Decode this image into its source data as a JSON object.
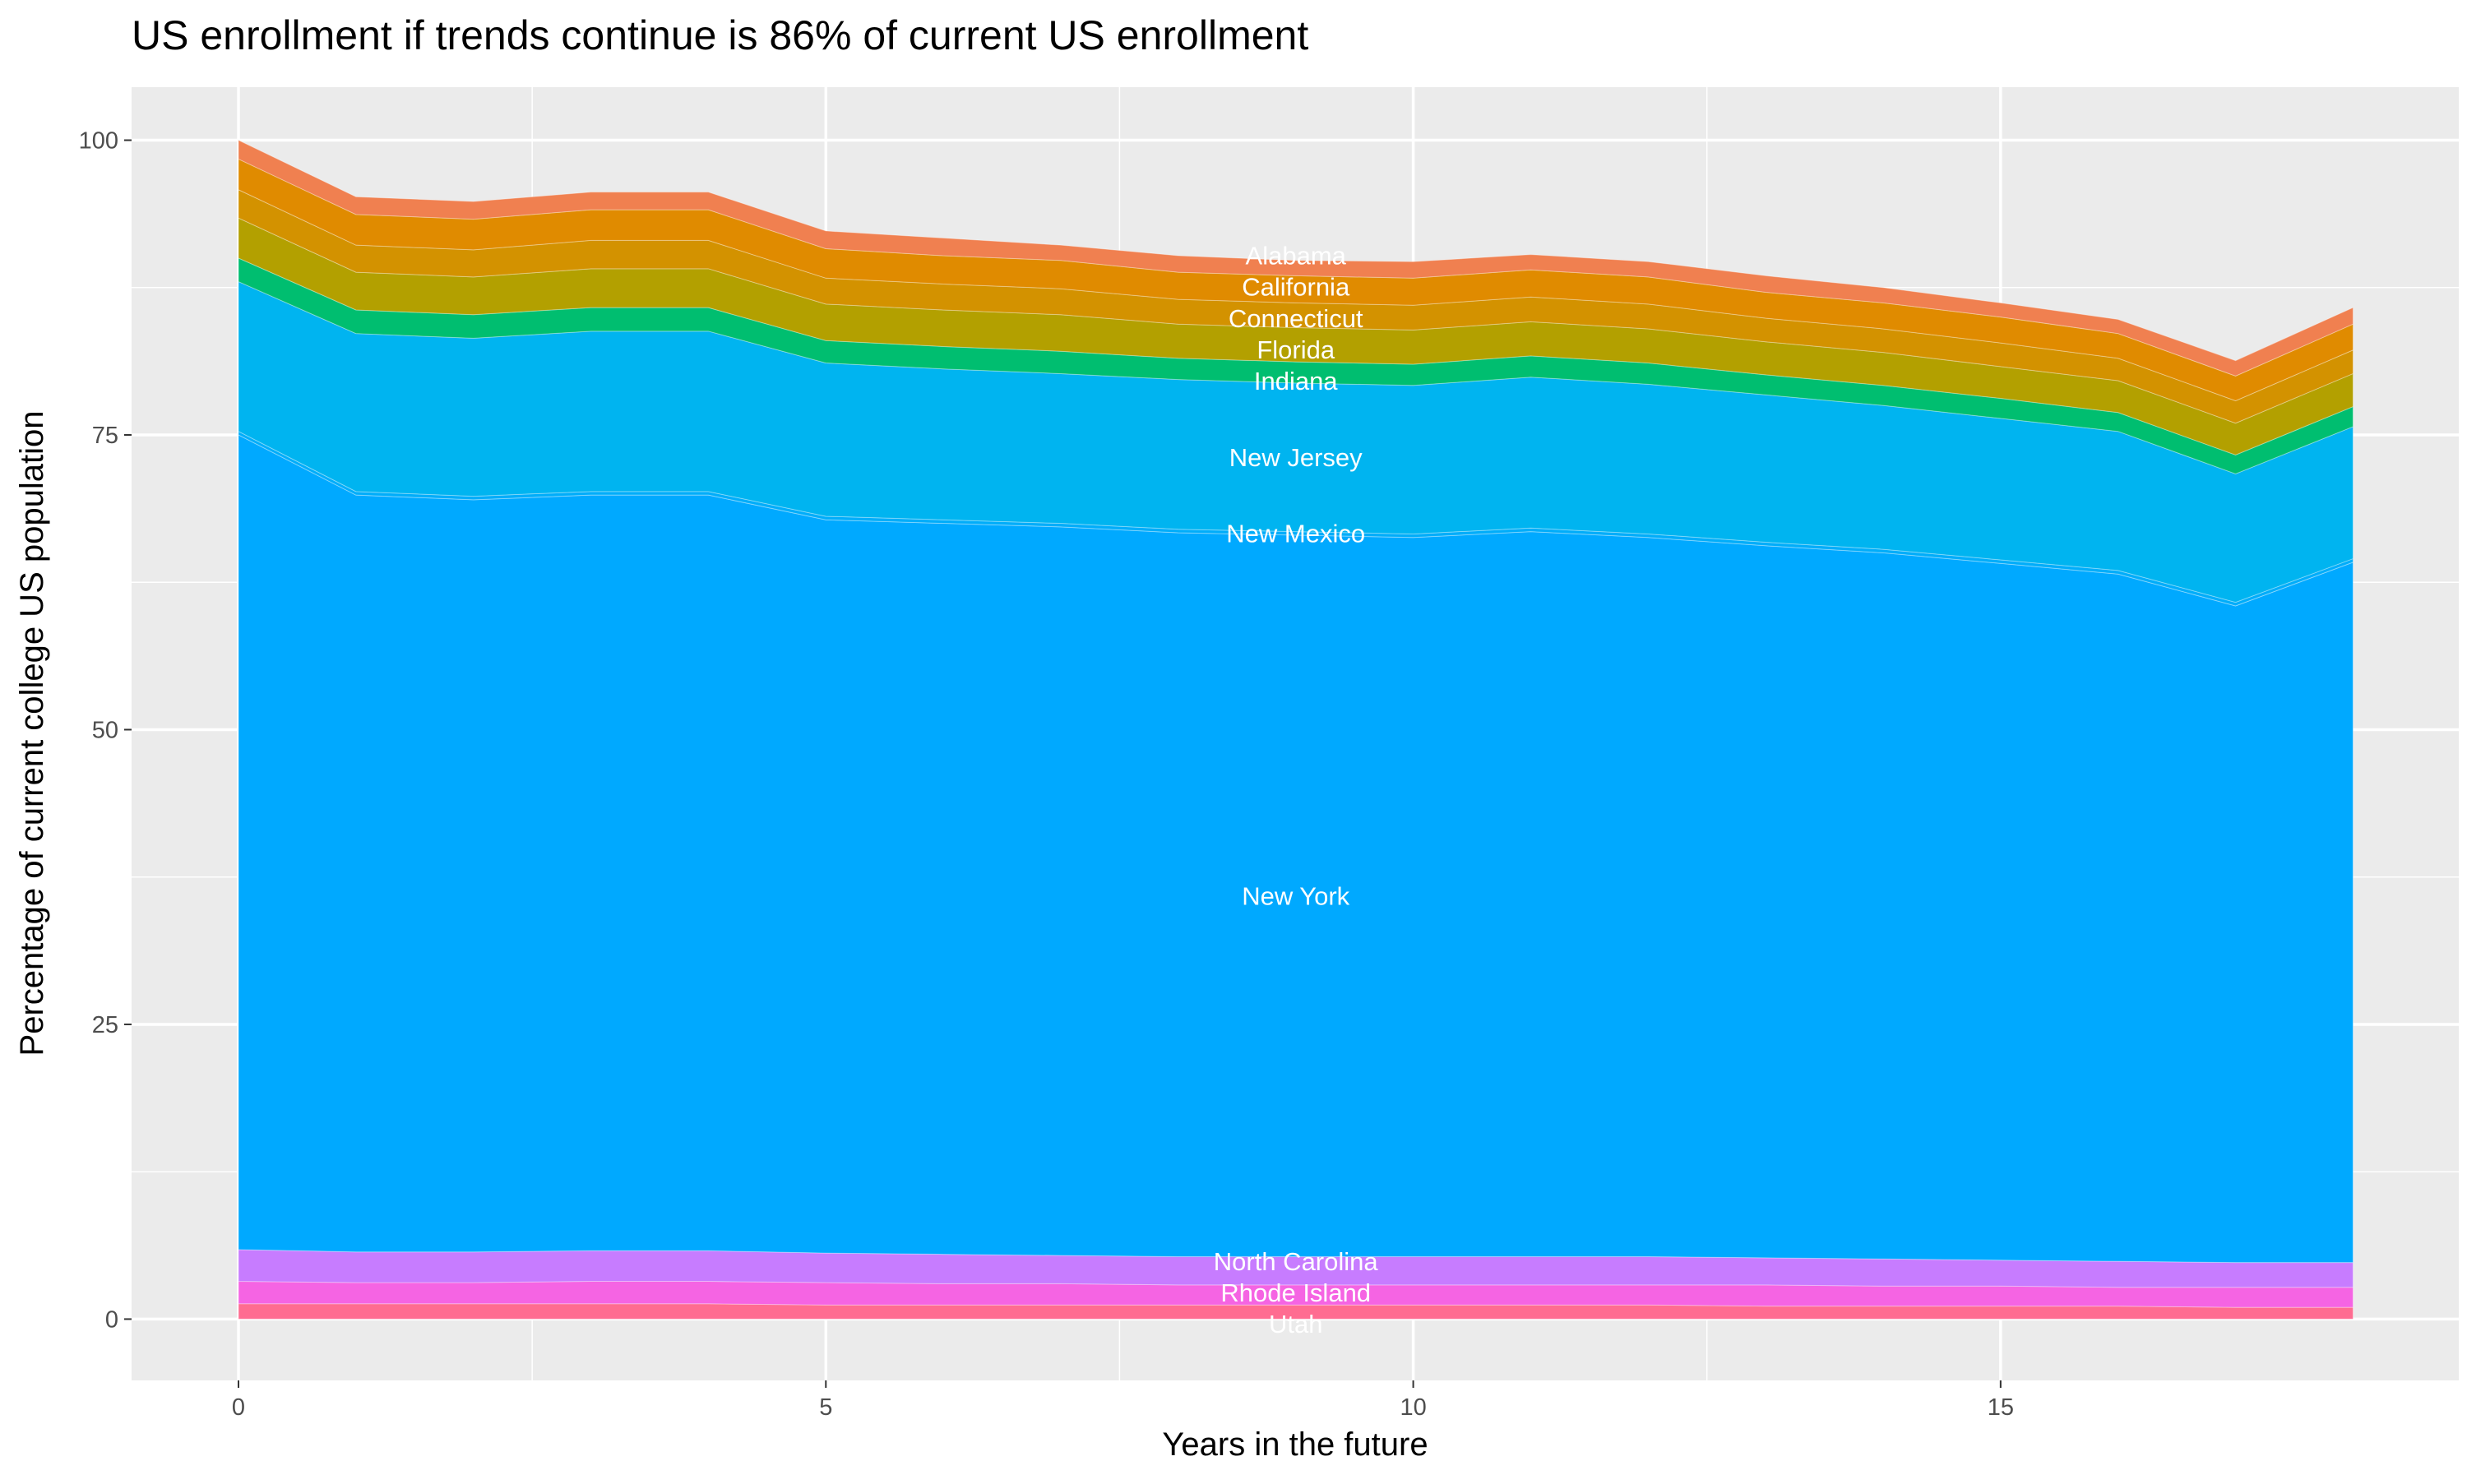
{
  "chart_data": {
    "type": "area",
    "stacked": true,
    "title": "US enrollment if trends continue is 86% of current US enrollment",
    "xlabel": "Years in the future",
    "ylabel": "Percentage of current college US population",
    "xlim": [
      -0.91,
      18.9
    ],
    "ylim": [
      -5.2,
      104.5
    ],
    "x_ticks": [
      0,
      5,
      10,
      15
    ],
    "y_ticks": [
      0,
      25,
      50,
      75,
      100
    ],
    "grid": true,
    "legend": "none",
    "label_x": 9,
    "x": [
      0,
      1,
      2,
      3,
      4,
      5,
      6,
      7,
      8,
      9,
      10,
      11,
      12,
      13,
      14,
      15,
      16,
      17,
      18
    ],
    "series": [
      {
        "name": "Utah",
        "color": "#FF6C91",
        "values": [
          1.3,
          1.3,
          1.3,
          1.3,
          1.3,
          1.2,
          1.2,
          1.2,
          1.2,
          1.2,
          1.2,
          1.2,
          1.2,
          1.1,
          1.1,
          1.1,
          1.1,
          1.0,
          1.0
        ]
      },
      {
        "name": "Rhode Island",
        "color": "#F564E3",
        "values": [
          1.9,
          1.8,
          1.8,
          1.9,
          1.9,
          1.9,
          1.8,
          1.8,
          1.7,
          1.7,
          1.7,
          1.7,
          1.7,
          1.8,
          1.7,
          1.7,
          1.6,
          1.7,
          1.7
        ]
      },
      {
        "name": "North Carolina",
        "color": "#C77CFF",
        "values": [
          2.7,
          2.6,
          2.6,
          2.6,
          2.6,
          2.5,
          2.5,
          2.4,
          2.4,
          2.4,
          2.4,
          2.4,
          2.4,
          2.3,
          2.3,
          2.2,
          2.2,
          2.1,
          2.1
        ]
      },
      {
        "name": "New York",
        "color": "#00A9FF",
        "values": [
          69.1,
          64.2,
          63.8,
          64.1,
          64.1,
          62.2,
          62.0,
          61.8,
          61.4,
          61.2,
          61.0,
          61.5,
          61.0,
          60.4,
          59.9,
          59.1,
          58.3,
          55.7,
          59.4
        ]
      },
      {
        "name": "New Mexico",
        "color": "#00ADFA",
        "values": [
          0.3,
          0.3,
          0.3,
          0.3,
          0.3,
          0.3,
          0.3,
          0.3,
          0.3,
          0.3,
          0.3,
          0.3,
          0.3,
          0.3,
          0.3,
          0.3,
          0.3,
          0.3,
          0.3
        ]
      },
      {
        "name": "New Jersey",
        "color": "#00B4F0",
        "values": [
          12.7,
          13.4,
          13.4,
          13.6,
          13.6,
          13.0,
          12.8,
          12.7,
          12.7,
          12.6,
          12.6,
          12.8,
          12.7,
          12.5,
          12.2,
          12.0,
          11.8,
          10.9,
          11.2
        ]
      },
      {
        "name": "Indiana",
        "color": "#00BE70",
        "values": [
          2.0,
          2.0,
          2.0,
          2.0,
          2.0,
          1.9,
          1.9,
          1.9,
          1.8,
          1.8,
          1.8,
          1.8,
          1.8,
          1.7,
          1.7,
          1.7,
          1.6,
          1.6,
          1.7
        ]
      },
      {
        "name": "Florida",
        "color": "#B3A000",
        "values": [
          3.4,
          3.2,
          3.2,
          3.3,
          3.3,
          3.1,
          3.1,
          3.1,
          2.9,
          2.9,
          2.9,
          2.9,
          2.9,
          2.8,
          2.8,
          2.7,
          2.7,
          2.7,
          2.8
        ]
      },
      {
        "name": "Connecticut",
        "color": "#D39200",
        "values": [
          2.4,
          2.3,
          2.3,
          2.4,
          2.4,
          2.2,
          2.2,
          2.2,
          2.1,
          2.1,
          2.1,
          2.1,
          2.1,
          2.0,
          2.0,
          2.0,
          1.9,
          1.9,
          2.0
        ]
      },
      {
        "name": "California",
        "color": "#E08B00",
        "values": [
          2.6,
          2.6,
          2.6,
          2.6,
          2.6,
          2.5,
          2.4,
          2.4,
          2.3,
          2.3,
          2.3,
          2.3,
          2.3,
          2.2,
          2.2,
          2.2,
          2.1,
          2.1,
          2.2
        ]
      },
      {
        "name": "Alabama",
        "color": "#F08050",
        "values": [
          1.6,
          1.5,
          1.5,
          1.5,
          1.5,
          1.5,
          1.5,
          1.3,
          1.4,
          1.3,
          1.4,
          1.3,
          1.3,
          1.4,
          1.3,
          1.2,
          1.2,
          1.3,
          1.4
        ]
      }
    ]
  }
}
